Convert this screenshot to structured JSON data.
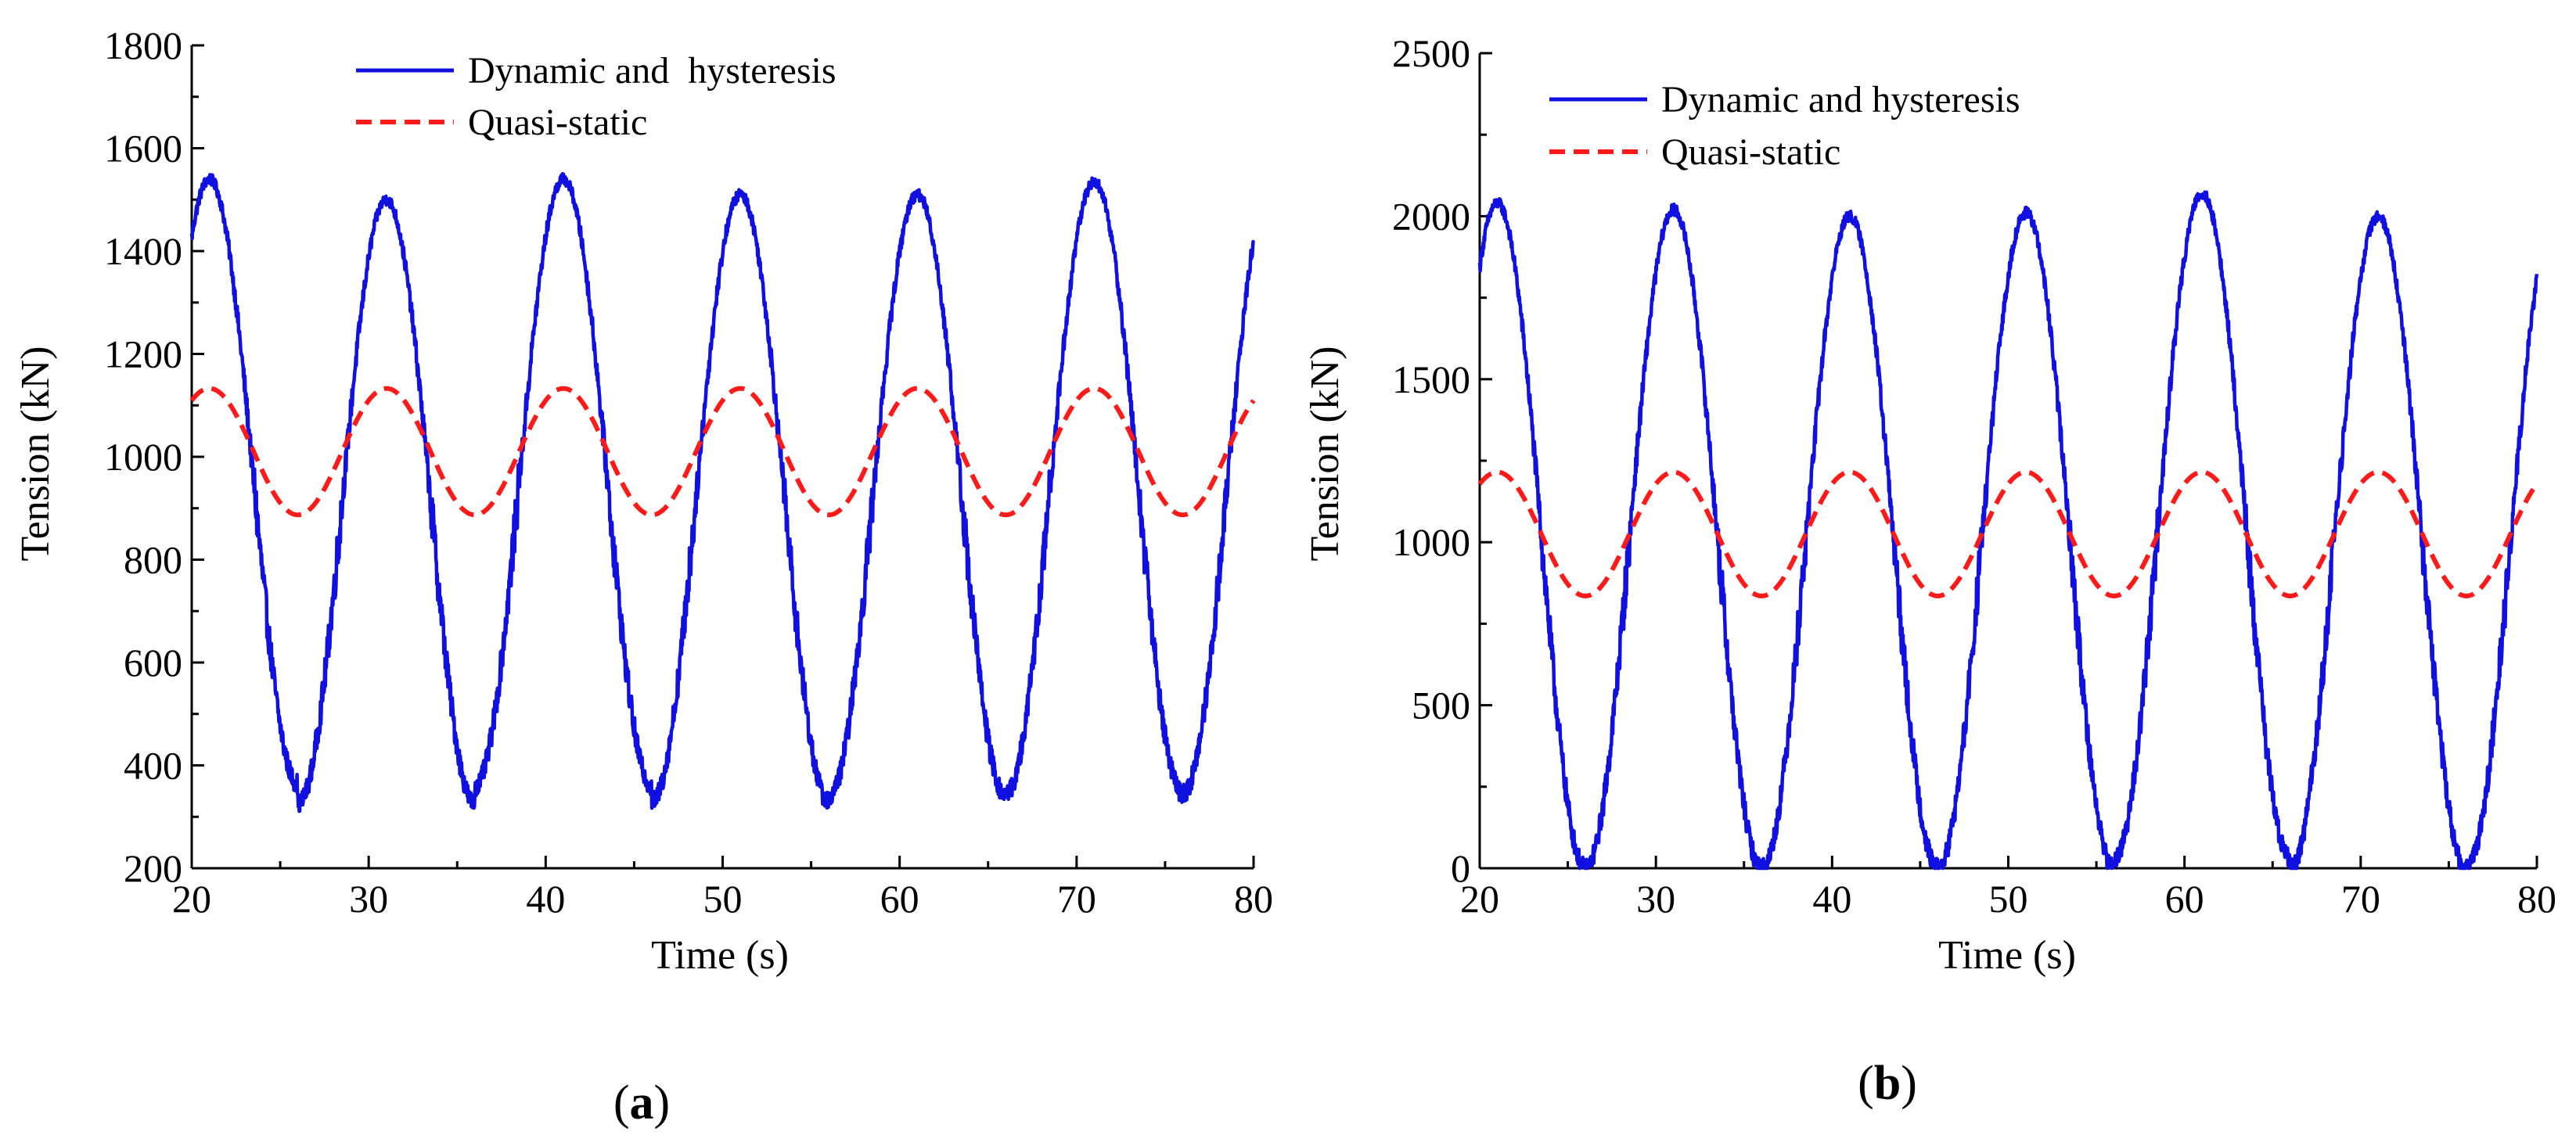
{
  "chart_data": [
    {
      "type": "line",
      "panel": "a",
      "panel_label_open": "(",
      "panel_label_letter": "a",
      "panel_label_close": ")",
      "xlabel": "Time (s)",
      "ylabel": "Tension (kN)",
      "xlim": [
        20,
        80
      ],
      "ylim": [
        200,
        1800
      ],
      "xticks": [
        20,
        30,
        40,
        50,
        60,
        70,
        80
      ],
      "yticks": [
        200,
        400,
        600,
        800,
        1000,
        1200,
        1400,
        1600,
        1800
      ],
      "x_tick_labels": [
        "20",
        "30",
        "40",
        "50",
        "60",
        "70",
        "80"
      ],
      "y_tick_labels": [
        "200",
        "400",
        "600",
        "800",
        "1000",
        "1200",
        "1400",
        "1600",
        "1800"
      ],
      "series": [
        {
          "name": "Dynamic and  hysteresis",
          "color": "#1010e0",
          "style": "solid",
          "period": 10,
          "mean": 940,
          "amplitude": 555,
          "phase_peak_time": 21,
          "noise_amplitude": 45,
          "peaks": [
            1540,
            1500,
            1540,
            1510,
            1510,
            1535
          ],
          "troughs": [
            365,
            325,
            360,
            330,
            340,
            345
          ]
        },
        {
          "name": "Quasi-static",
          "color": "#ff1a1a",
          "style": "dashed",
          "period": 10,
          "mean": 1010,
          "amplitude": 123,
          "phase_peak_time": 21,
          "max": 1133,
          "min": 887
        }
      ]
    },
    {
      "type": "line",
      "panel": "b",
      "panel_label_open": "(",
      "panel_label_letter": "b",
      "panel_label_close": ")",
      "xlabel": "Time (s)",
      "ylabel": "Tension (kN)",
      "xlim": [
        20,
        80
      ],
      "ylim": [
        0,
        2500
      ],
      "xticks": [
        20,
        30,
        40,
        50,
        60,
        70,
        80
      ],
      "yticks": [
        0,
        500,
        1000,
        1500,
        2000,
        2500
      ],
      "x_tick_labels": [
        "20",
        "30",
        "40",
        "50",
        "60",
        "70",
        "80"
      ],
      "y_tick_labels": [
        "0",
        "500",
        "1000",
        "1500",
        "2000",
        "2500"
      ],
      "series": [
        {
          "name": "Dynamic and hysteresis",
          "color": "#1010e0",
          "style": "solid",
          "period": 10,
          "mean": 1010,
          "amplitude": 1000,
          "phase_peak_time": 21,
          "noise_amplitude": 70,
          "peaks": [
            2040,
            2020,
            2000,
            2010,
            2070,
            2000
          ],
          "troughs": [
            0,
            0,
            0,
            0,
            30,
            0
          ]
        },
        {
          "name": "Quasi-static",
          "color": "#ff1a1a",
          "style": "dashed",
          "period": 10,
          "mean": 1025,
          "amplitude": 190,
          "phase_peak_time": 21,
          "max": 1215,
          "min": 835
        }
      ]
    }
  ]
}
